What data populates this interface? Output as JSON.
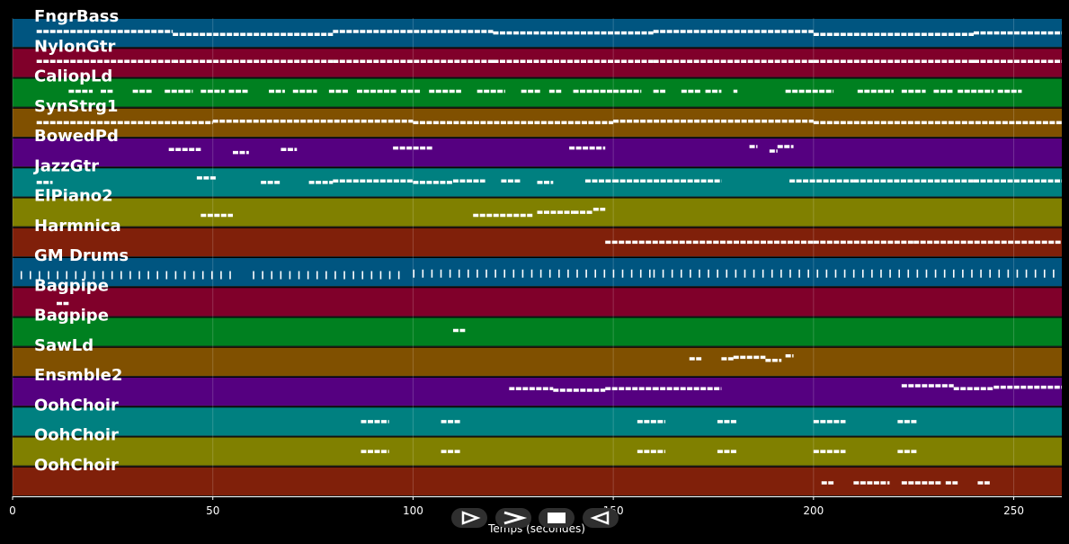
{
  "chart_data": {
    "type": "piano-roll",
    "xlabel": "Temps (secondes)",
    "xlim": [
      0,
      262
    ],
    "x_ticks": [
      0,
      50,
      100,
      150,
      200,
      250
    ],
    "grid": true,
    "tracks": [
      {
        "name": "FngrBass",
        "color": "#005580",
        "notes": [
          [
            6,
            40,
            0.45
          ],
          [
            40,
            80,
            0.55
          ],
          [
            80,
            120,
            0.45
          ],
          [
            120,
            160,
            0.5
          ],
          [
            160,
            200,
            0.45
          ],
          [
            200,
            240,
            0.55
          ],
          [
            240,
            262,
            0.5
          ]
        ]
      },
      {
        "name": "NylonGtr",
        "color": "#80002a",
        "notes": [
          [
            6,
            40,
            0.45
          ],
          [
            40,
            80,
            0.45
          ],
          [
            80,
            120,
            0.45
          ],
          [
            120,
            160,
            0.45
          ],
          [
            160,
            200,
            0.45
          ],
          [
            200,
            240,
            0.45
          ],
          [
            240,
            262,
            0.45
          ]
        ]
      },
      {
        "name": "CaliopLd",
        "color": "#008020",
        "notes": [
          [
            14,
            20,
            0.45
          ],
          [
            22,
            25,
            0.45
          ],
          [
            30,
            35,
            0.45
          ],
          [
            38,
            45,
            0.45
          ],
          [
            47,
            53,
            0.45
          ],
          [
            54,
            59,
            0.45
          ],
          [
            64,
            68,
            0.45
          ],
          [
            70,
            76,
            0.45
          ],
          [
            79,
            84,
            0.45
          ],
          [
            86,
            96,
            0.45
          ],
          [
            97,
            102,
            0.45
          ],
          [
            104,
            112,
            0.45
          ],
          [
            116,
            123,
            0.45
          ],
          [
            127,
            132,
            0.45
          ],
          [
            134,
            137,
            0.45
          ],
          [
            140,
            150,
            0.45
          ],
          [
            150,
            157,
            0.45
          ],
          [
            160,
            163,
            0.45
          ],
          [
            167,
            172,
            0.45
          ],
          [
            173,
            177,
            0.45
          ],
          [
            180,
            181,
            0.45
          ],
          [
            193,
            205,
            0.45
          ],
          [
            211,
            220,
            0.45
          ],
          [
            222,
            228,
            0.45
          ],
          [
            230,
            235,
            0.45
          ],
          [
            236,
            245,
            0.45
          ],
          [
            246,
            252,
            0.45
          ]
        ]
      },
      {
        "name": "SynStrg1",
        "color": "#805000",
        "notes": [
          [
            6,
            50,
            0.5
          ],
          [
            50,
            100,
            0.45
          ],
          [
            100,
            150,
            0.5
          ],
          [
            150,
            200,
            0.45
          ],
          [
            200,
            262,
            0.5
          ]
        ]
      },
      {
        "name": "BowedPd",
        "color": "#550080",
        "notes": [
          [
            39,
            47,
            0.4
          ],
          [
            55,
            59,
            0.5
          ],
          [
            67,
            71,
            0.4
          ],
          [
            95,
            105,
            0.35
          ],
          [
            139,
            148,
            0.35
          ],
          [
            184,
            186,
            0.3
          ],
          [
            189,
            191,
            0.45
          ],
          [
            191,
            195,
            0.3
          ]
        ]
      },
      {
        "name": "JazzGtr",
        "color": "#008080",
        "notes": [
          [
            6,
            10,
            0.5
          ],
          [
            46,
            51,
            0.35
          ],
          [
            62,
            67,
            0.5
          ],
          [
            74,
            80,
            0.5
          ],
          [
            80,
            100,
            0.45
          ],
          [
            100,
            110,
            0.5
          ],
          [
            110,
            118,
            0.45
          ],
          [
            122,
            127,
            0.45
          ],
          [
            131,
            135,
            0.5
          ],
          [
            143,
            150,
            0.45
          ],
          [
            150,
            177,
            0.45
          ],
          [
            194,
            210,
            0.45
          ],
          [
            210,
            240,
            0.45
          ],
          [
            240,
            262,
            0.45
          ]
        ]
      },
      {
        "name": "ElPiano2",
        "color": "#808000",
        "notes": [
          [
            47,
            55,
            0.6
          ],
          [
            115,
            130,
            0.6
          ],
          [
            131,
            140,
            0.5
          ],
          [
            140,
            145,
            0.5
          ],
          [
            145,
            148,
            0.4
          ]
        ]
      },
      {
        "name": "Harmnica",
        "color": "#80200a",
        "notes": [
          [
            148,
            175,
            0.5
          ],
          [
            175,
            200,
            0.5
          ],
          [
            200,
            225,
            0.5
          ],
          [
            225,
            262,
            0.5
          ]
        ]
      },
      {
        "name": "GM Drums",
        "color": "#005580",
        "notes": [
          [
            2,
            55,
            0.6
          ],
          [
            60,
            98,
            0.6
          ],
          [
            100,
            160,
            0.55
          ],
          [
            160,
            262,
            0.55
          ]
        ]
      },
      {
        "name": "Bagpipe",
        "color": "#80002a",
        "notes": [
          [
            11,
            14,
            0.55
          ]
        ]
      },
      {
        "name": "Bagpipe",
        "color": "#008020",
        "notes": [
          [
            110,
            113,
            0.45
          ]
        ]
      },
      {
        "name": "SawLd",
        "color": "#805000",
        "notes": [
          [
            169,
            172,
            0.4
          ],
          [
            177,
            180,
            0.4
          ],
          [
            180,
            188,
            0.35
          ],
          [
            188,
            192,
            0.45
          ],
          [
            193,
            195,
            0.3
          ]
        ]
      },
      {
        "name": "Ensmble2",
        "color": "#550080",
        "notes": [
          [
            124,
            135,
            0.4
          ],
          [
            135,
            148,
            0.45
          ],
          [
            148,
            160,
            0.4
          ],
          [
            160,
            177,
            0.4
          ],
          [
            222,
            235,
            0.3
          ],
          [
            235,
            245,
            0.4
          ],
          [
            245,
            262,
            0.35
          ]
        ]
      },
      {
        "name": "OohChoir",
        "color": "#008080",
        "notes": [
          [
            87,
            94,
            0.5
          ],
          [
            107,
            112,
            0.5
          ],
          [
            156,
            163,
            0.5
          ],
          [
            176,
            181,
            0.5
          ],
          [
            200,
            208,
            0.5
          ],
          [
            221,
            226,
            0.5
          ]
        ]
      },
      {
        "name": "OohChoir",
        "color": "#808000",
        "notes": [
          [
            87,
            94,
            0.5
          ],
          [
            107,
            112,
            0.5
          ],
          [
            156,
            163,
            0.5
          ],
          [
            176,
            181,
            0.5
          ],
          [
            200,
            208,
            0.5
          ],
          [
            221,
            226,
            0.5
          ]
        ]
      },
      {
        "name": "OohChoir",
        "color": "#80200a",
        "notes": [
          [
            202,
            205,
            0.55
          ],
          [
            210,
            219,
            0.55
          ],
          [
            222,
            232,
            0.55
          ],
          [
            233,
            236,
            0.55
          ],
          [
            241,
            244,
            0.55
          ]
        ]
      }
    ]
  },
  "controls": [
    {
      "name": "play-button",
      "icon": "play-icon"
    },
    {
      "name": "fast-forward-button",
      "icon": "fast-forward-icon"
    },
    {
      "name": "stop-button",
      "icon": "stop-icon"
    },
    {
      "name": "rewind-button",
      "icon": "rewind-icon"
    }
  ]
}
